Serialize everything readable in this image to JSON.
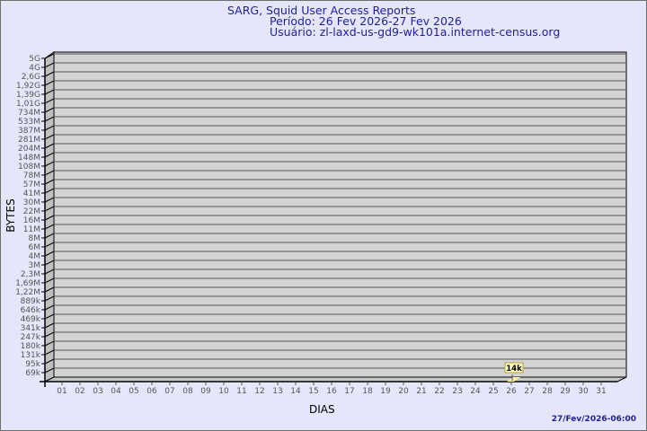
{
  "header": {
    "title": "SARG, Squid User Access Reports",
    "period": "Período: 26 Fev 2026-27 Fev 2026",
    "user": "Usuário: zl-laxd-us-gd9-wk101a.internet-census.org"
  },
  "footer": {
    "timestamp": "27/Fev/2026-06:00"
  },
  "colors": {
    "background": "#e6e6fa",
    "plot": "#d3d3d3",
    "bar": "#ffe99a",
    "title": "#1e1e9e"
  },
  "chart_data": {
    "type": "bar",
    "xlabel": "DIAS",
    "ylabel": "BYTES",
    "y_scale": "log",
    "y_ticks": [
      "5G",
      "4G",
      "2,6G",
      "1,92G",
      "1,39G",
      "1,01G",
      "734M",
      "533M",
      "387M",
      "281M",
      "204M",
      "148M",
      "108M",
      "78M",
      "57M",
      "41M",
      "30M",
      "22M",
      "16M",
      "11M",
      "8M",
      "6M",
      "4M",
      "3M",
      "2,3M",
      "1,69M",
      "1,22M",
      "889k",
      "646k",
      "469k",
      "341k",
      "247k",
      "180k",
      "131k",
      "95k",
      "69k"
    ],
    "categories": [
      "01",
      "02",
      "03",
      "04",
      "05",
      "06",
      "07",
      "08",
      "09",
      "10",
      "11",
      "12",
      "13",
      "14",
      "15",
      "16",
      "17",
      "18",
      "19",
      "20",
      "21",
      "22",
      "23",
      "24",
      "25",
      "26",
      "27",
      "28",
      "29",
      "30",
      "31"
    ],
    "values": [
      null,
      null,
      null,
      null,
      null,
      null,
      null,
      null,
      null,
      null,
      null,
      null,
      null,
      null,
      null,
      null,
      null,
      null,
      null,
      null,
      null,
      null,
      null,
      null,
      null,
      14000,
      null,
      null,
      null,
      null,
      null
    ],
    "data_labels": {
      "26": "14k"
    },
    "grid": true
  }
}
